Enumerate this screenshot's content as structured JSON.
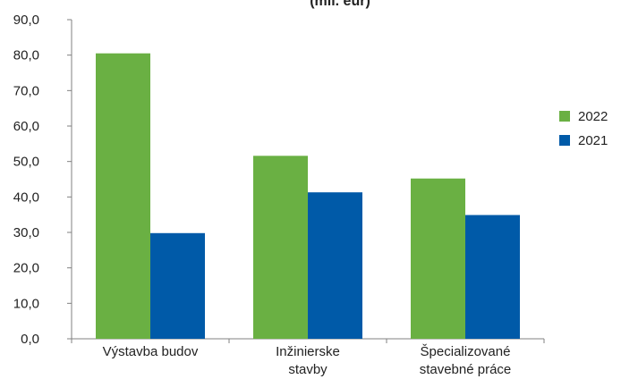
{
  "chart_data": {
    "type": "bar",
    "title": "(mil. eur)",
    "categories": [
      [
        "Výstavba budov"
      ],
      [
        "Inžinierske",
        "stavby"
      ],
      [
        "Špecializované",
        "stavebné práce"
      ]
    ],
    "series": [
      {
        "name": "2022",
        "color": "#6ab043",
        "values": [
          80.5,
          51.6,
          45.2
        ]
      },
      {
        "name": "2021",
        "color": "#005aa8",
        "values": [
          29.8,
          41.3,
          34.9
        ]
      }
    ],
    "ylim": [
      0,
      90
    ],
    "ytick_step": 10,
    "ytick_labels": [
      "0,0",
      "10,0",
      "20,0",
      "30,0",
      "40,0",
      "50,0",
      "60,0",
      "70,0",
      "80,0",
      "90,0"
    ],
    "xlabel": "",
    "ylabel": "",
    "grid": false,
    "legend_position": "right"
  }
}
